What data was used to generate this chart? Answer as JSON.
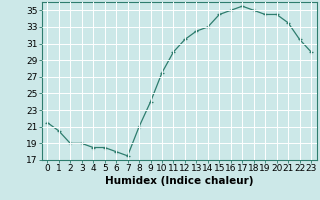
{
  "x": [
    0,
    1,
    2,
    3,
    4,
    5,
    6,
    7,
    8,
    9,
    10,
    11,
    12,
    13,
    14,
    15,
    16,
    17,
    18,
    19,
    20,
    21,
    22,
    23
  ],
  "y": [
    21.5,
    20.5,
    19.0,
    19.0,
    18.5,
    18.5,
    18.0,
    17.5,
    21.0,
    24.0,
    27.5,
    30.0,
    31.5,
    32.5,
    33.0,
    34.5,
    35.0,
    35.5,
    35.0,
    34.5,
    34.5,
    33.5,
    31.5,
    30.0
  ],
  "line_color": "#2e7d6e",
  "marker": "+",
  "bg_color": "#cce8e8",
  "grid_color": "#ffffff",
  "xlabel": "Humidex (Indice chaleur)",
  "ylim": [
    17,
    36
  ],
  "xlim": [
    -0.5,
    23.5
  ],
  "yticks": [
    17,
    19,
    21,
    23,
    25,
    27,
    29,
    31,
    33,
    35
  ],
  "xticks": [
    0,
    1,
    2,
    3,
    4,
    5,
    6,
    7,
    8,
    9,
    10,
    11,
    12,
    13,
    14,
    15,
    16,
    17,
    18,
    19,
    20,
    21,
    22,
    23
  ],
  "tick_font_size": 6.5,
  "label_font_size": 7.5
}
